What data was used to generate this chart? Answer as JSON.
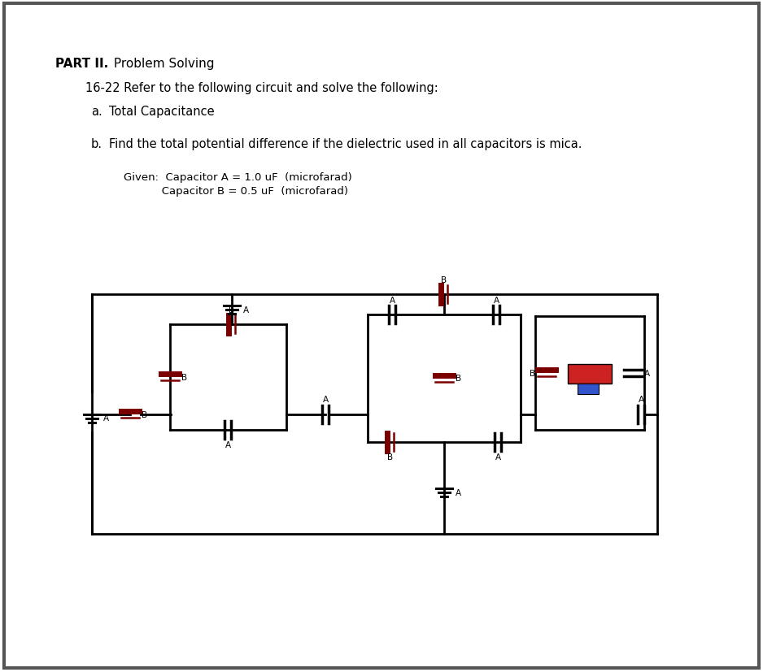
{
  "bg": "#ffffff",
  "border_color": "#555555",
  "lc": "#000000",
  "red": "#cc2222",
  "blue": "#3355cc",
  "dark_red": "#7a0000",
  "title_bold": "PART II.",
  "title_normal": " Problem Solving",
  "line1": "16-22 Refer to the following circuit and solve the following:",
  "a_label": "a.",
  "a_text": "Total Capacitance",
  "b_label": "b.",
  "b_text": "Find the total potential difference if the dielectric used in all capacitors is mica.",
  "given1": "Given:  Capacitor A = 1.0 uF  (microfarad)",
  "given2": "           Capacitor B = 0.5 uF  (microfarad)"
}
